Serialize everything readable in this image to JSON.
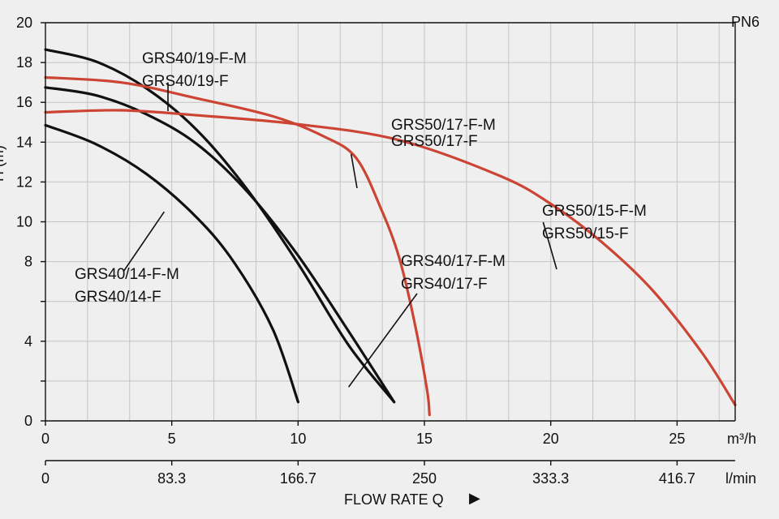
{
  "chart_data": {
    "type": "line",
    "title": "",
    "pressure_class": "PN6",
    "ylabel": "H (m)",
    "x_unit": "m³/h",
    "x2_unit": "l/min",
    "xlabel": "FLOW RATE Q",
    "xlabel_arrow": "▶",
    "xlim": [
      0,
      27.3
    ],
    "ylim": [
      0,
      20
    ],
    "x_ticks": [
      {
        "value": 0,
        "label": "0"
      },
      {
        "value": 5,
        "label": "5"
      },
      {
        "value": 10,
        "label": "10"
      },
      {
        "value": 15,
        "label": "15"
      },
      {
        "value": 20,
        "label": "20"
      },
      {
        "value": 25,
        "label": "25"
      }
    ],
    "x2_ticks": [
      {
        "value": 0,
        "label": "0"
      },
      {
        "value": 5,
        "label": "83.3"
      },
      {
        "value": 10,
        "label": "166.7"
      },
      {
        "value": 15,
        "label": "250"
      },
      {
        "value": 20,
        "label": "333.3"
      },
      {
        "value": 25,
        "label": "416.7"
      }
    ],
    "y_ticks": [
      {
        "value": 0,
        "label": "0"
      },
      {
        "value": 2,
        "label": ""
      },
      {
        "value": 4,
        "label": "4"
      },
      {
        "value": 6,
        "label": ""
      },
      {
        "value": 8,
        "label": "8"
      },
      {
        "value": 10,
        "label": "10"
      },
      {
        "value": 12,
        "label": "12"
      },
      {
        "value": 14,
        "label": "14"
      },
      {
        "value": 16,
        "label": "16"
      },
      {
        "value": 18,
        "label": "18"
      },
      {
        "value": 20,
        "label": "20"
      }
    ],
    "x_gridlines": [
      0,
      1.6667,
      3.3333,
      5,
      6.6667,
      8.3333,
      10,
      11.6667,
      13.3333,
      15,
      16.6667,
      18.3333,
      20,
      21.6667,
      23.3333,
      25,
      26.6667
    ],
    "y_gridlines": [
      0,
      2,
      4,
      6,
      8,
      10,
      12,
      14,
      16,
      18,
      20
    ],
    "series": [
      {
        "name": "GRS40/14-F-M / GRS40/14-F",
        "color": "#111111",
        "points": [
          [
            0,
            14.85
          ],
          [
            2,
            13.9
          ],
          [
            4,
            12.4
          ],
          [
            6,
            10.2
          ],
          [
            7.5,
            7.9
          ],
          [
            9,
            4.6
          ],
          [
            10,
            0.95
          ]
        ]
      },
      {
        "name": "GRS40/19-F-M / GRS40/19-F",
        "color": "#111111",
        "points": [
          [
            0,
            18.65
          ],
          [
            2,
            18.05
          ],
          [
            4,
            16.7
          ],
          [
            6,
            14.6
          ],
          [
            8,
            11.6
          ],
          [
            10,
            7.9
          ],
          [
            12,
            3.8
          ],
          [
            13.8,
            0.95
          ]
        ]
      },
      {
        "name": "GRS40/17-F-M / GRS40/17-F",
        "color": "#111111",
        "points": [
          [
            0,
            16.75
          ],
          [
            2,
            16.35
          ],
          [
            4,
            15.4
          ],
          [
            6,
            13.9
          ],
          [
            8,
            11.5
          ],
          [
            10,
            8.3
          ],
          [
            12,
            4.5
          ],
          [
            13.8,
            0.95
          ]
        ]
      },
      {
        "name": "GRS50/17-F-M / GRS50/17-F",
        "color": "#cc4433",
        "points": [
          [
            0,
            17.25
          ],
          [
            3,
            17.0
          ],
          [
            6,
            16.2
          ],
          [
            9,
            15.3
          ],
          [
            11,
            14.3
          ],
          [
            12.3,
            13.2
          ],
          [
            13.3,
            10.6
          ],
          [
            14,
            8.2
          ],
          [
            14.6,
            5.0
          ],
          [
            15.1,
            1.6
          ],
          [
            15.2,
            0.3
          ]
        ]
      },
      {
        "name": "GRS50/15-F-M / GRS50/15-F",
        "color": "#cc4433",
        "points": [
          [
            0,
            15.5
          ],
          [
            3,
            15.6
          ],
          [
            6,
            15.35
          ],
          [
            10,
            14.9
          ],
          [
            14,
            14.1
          ],
          [
            18,
            12.3
          ],
          [
            20,
            10.9
          ],
          [
            22,
            9.0
          ],
          [
            24,
            6.6
          ],
          [
            26,
            3.4
          ],
          [
            27.3,
            0.8
          ]
        ]
      }
    ],
    "annotations": [
      {
        "lines": [
          "GRS40/19-F-M",
          "GRS40/19-F"
        ],
        "pointer": [
          4.85,
          17.0
        ]
      },
      {
        "lines": [
          "GRS50/17-F-M",
          "GRS50/17-F"
        ],
        "pointer": [
          12.1,
          13.4
        ]
      },
      {
        "lines": [
          "GRS50/15-F-M",
          "GRS50/15-F"
        ],
        "pointer": [
          19.7,
          9.98
        ]
      },
      {
        "lines": [
          "GRS40/17-F-M",
          "GRS40/17-F"
        ],
        "pointer": [
          12.0,
          1.7
        ]
      },
      {
        "lines": [
          "GRS40/14-F-M",
          "GRS40/14-F"
        ],
        "pointer": [
          4.7,
          10.5
        ]
      }
    ]
  }
}
